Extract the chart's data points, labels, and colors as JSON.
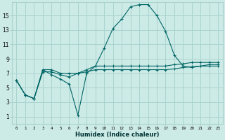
{
  "xlabel": "Humidex (Indice chaleur)",
  "bg_color": "#cceae6",
  "grid_color": "#aad4d0",
  "line_color": "#006666",
  "marker": "+",
  "x_ticks": [
    0,
    1,
    2,
    3,
    4,
    5,
    6,
    7,
    8,
    9,
    10,
    11,
    12,
    13,
    14,
    15,
    16,
    17,
    18,
    19,
    20,
    21,
    22,
    23
  ],
  "x_labels": [
    "0",
    "1",
    "2",
    "3",
    "4",
    "5",
    "6",
    "7",
    "8",
    "9",
    "10",
    "11",
    "12",
    "13",
    "14",
    "15",
    "16",
    "17",
    "18",
    "19",
    "20",
    "21",
    "22",
    "23"
  ],
  "y_ticks": [
    1,
    3,
    5,
    7,
    9,
    11,
    13,
    15
  ],
  "ylim": [
    0.0,
    16.8
  ],
  "xlim": [
    -0.5,
    23.5
  ],
  "series": [
    [
      6.0,
      4.0,
      3.5,
      7.5,
      7.5,
      7.0,
      7.0,
      7.0,
      7.5,
      8.0,
      8.0,
      8.0,
      8.0,
      8.0,
      8.0,
      8.0,
      8.0,
      8.0,
      8.2,
      8.3,
      8.5,
      8.5,
      8.5,
      8.5
    ],
    [
      6.0,
      4.0,
      3.5,
      7.2,
      7.2,
      6.8,
      6.5,
      7.0,
      7.2,
      7.5,
      7.5,
      7.5,
      7.5,
      7.5,
      7.5,
      7.5,
      7.5,
      7.5,
      7.6,
      7.8,
      7.9,
      8.0,
      8.0,
      8.0
    ],
    [
      6.0,
      4.0,
      3.5,
      7.5,
      6.8,
      6.2,
      5.5,
      1.2,
      7.0,
      8.0,
      10.5,
      13.2,
      14.5,
      16.2,
      16.5,
      16.5,
      15.0,
      12.8,
      9.5,
      8.0,
      7.8,
      8.0,
      8.2,
      8.2
    ]
  ]
}
